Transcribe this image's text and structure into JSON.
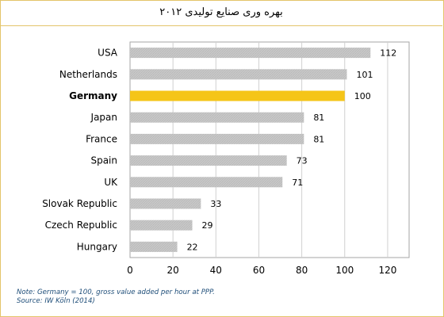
{
  "title": "بهره وری صنایع تولیدی ۲۰۱۲",
  "chart_data": {
    "type": "bar",
    "orientation": "horizontal",
    "categories": [
      "USA",
      "Netherlands",
      "Germany",
      "Japan",
      "France",
      "Spain",
      "UK",
      "Slovak Republic",
      "Czech Republic",
      "Hungary"
    ],
    "values": [
      112,
      101,
      100,
      81,
      81,
      73,
      71,
      33,
      29,
      22
    ],
    "highlight_category": "Germany",
    "bar_color": "#c8c8c8",
    "highlight_color": "#f5c518",
    "xlim": [
      0,
      130
    ],
    "xticks": [
      0,
      20,
      40,
      60,
      80,
      100,
      120
    ],
    "grid": true,
    "xlabel": "",
    "ylabel": ""
  },
  "note": {
    "line1": "Note:  Germany = 100, gross value added per hour at PPP.",
    "line2": "Source: IW Köln (2014)"
  }
}
